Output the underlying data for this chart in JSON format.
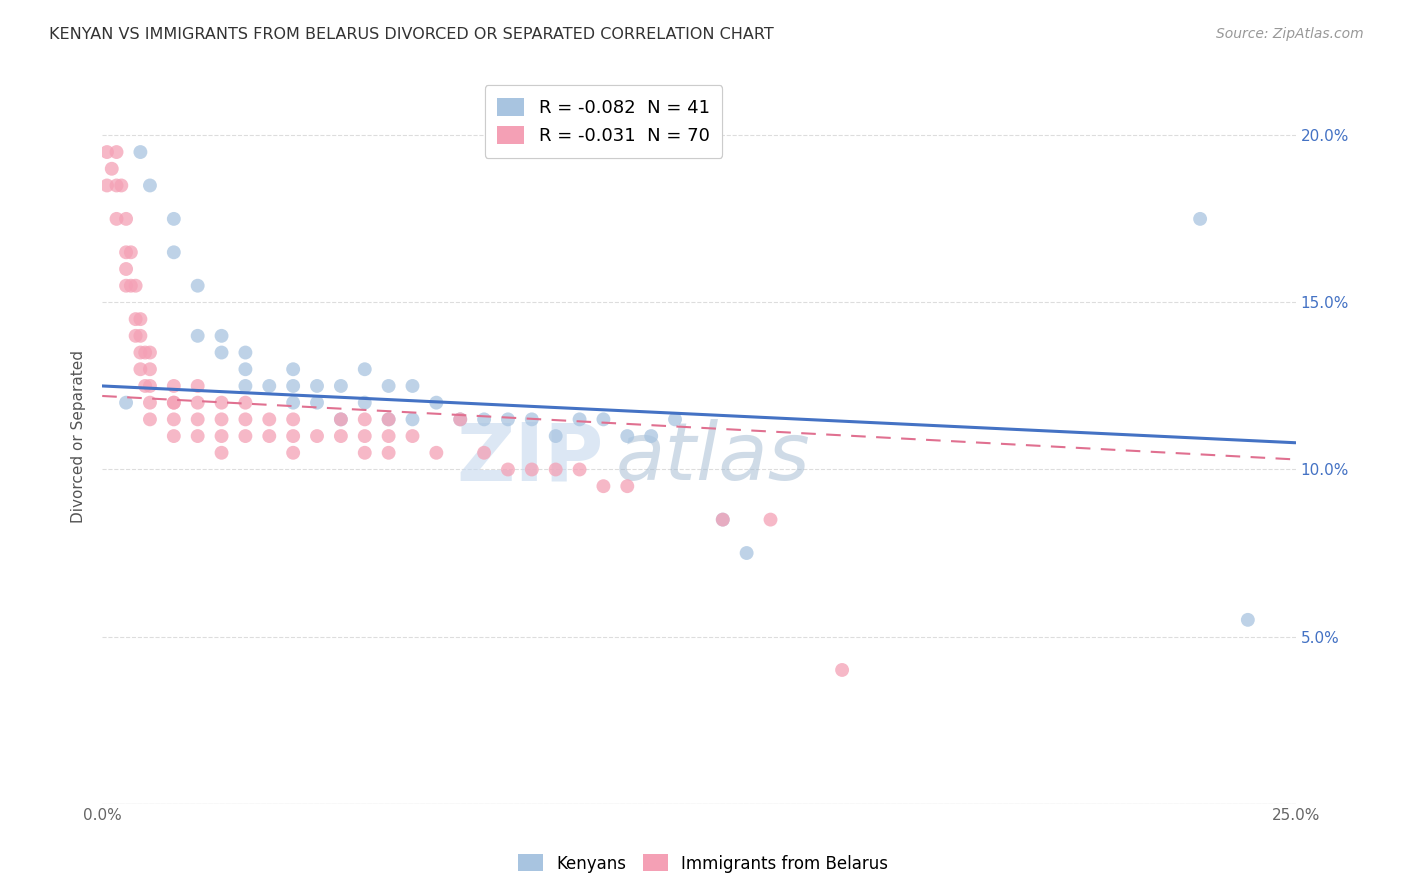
{
  "title": "KENYAN VS IMMIGRANTS FROM BELARUS DIVORCED OR SEPARATED CORRELATION CHART",
  "source": "Source: ZipAtlas.com",
  "ylabel": "Divorced or Separated",
  "x_min": 0.0,
  "x_max": 0.25,
  "y_min": 0.0,
  "y_max": 0.22,
  "x_ticks": [
    0.0,
    0.05,
    0.1,
    0.15,
    0.2,
    0.25
  ],
  "x_tick_labels": [
    "0.0%",
    "",
    "",
    "",
    "",
    "25.0%"
  ],
  "y_ticks": [
    0.0,
    0.05,
    0.1,
    0.15,
    0.2
  ],
  "y_tick_labels": [
    "",
    "5.0%",
    "10.0%",
    "15.0%",
    "20.0%"
  ],
  "legend_entries": [
    {
      "label": "R = -0.082  N = 41",
      "color": "#a8c4e0"
    },
    {
      "label": "R = -0.031  N = 70",
      "color": "#f4a0b5"
    }
  ],
  "legend_labels_bottom": [
    "Kenyans",
    "Immigrants from Belarus"
  ],
  "blue_scatter_x": [
    0.005,
    0.008,
    0.01,
    0.015,
    0.015,
    0.02,
    0.02,
    0.025,
    0.025,
    0.03,
    0.03,
    0.03,
    0.035,
    0.04,
    0.04,
    0.04,
    0.045,
    0.045,
    0.05,
    0.05,
    0.055,
    0.055,
    0.06,
    0.06,
    0.065,
    0.065,
    0.07,
    0.075,
    0.08,
    0.085,
    0.09,
    0.095,
    0.1,
    0.105,
    0.11,
    0.115,
    0.12,
    0.13,
    0.135,
    0.23,
    0.24
  ],
  "blue_scatter_y": [
    0.12,
    0.195,
    0.185,
    0.175,
    0.165,
    0.155,
    0.14,
    0.14,
    0.135,
    0.125,
    0.135,
    0.13,
    0.125,
    0.13,
    0.125,
    0.12,
    0.125,
    0.12,
    0.125,
    0.115,
    0.13,
    0.12,
    0.125,
    0.115,
    0.125,
    0.115,
    0.12,
    0.115,
    0.115,
    0.115,
    0.115,
    0.11,
    0.115,
    0.115,
    0.11,
    0.11,
    0.115,
    0.085,
    0.075,
    0.175,
    0.055
  ],
  "pink_scatter_x": [
    0.001,
    0.001,
    0.002,
    0.003,
    0.003,
    0.003,
    0.004,
    0.005,
    0.005,
    0.005,
    0.005,
    0.006,
    0.006,
    0.007,
    0.007,
    0.007,
    0.008,
    0.008,
    0.008,
    0.008,
    0.009,
    0.009,
    0.01,
    0.01,
    0.01,
    0.01,
    0.01,
    0.015,
    0.015,
    0.015,
    0.015,
    0.015,
    0.02,
    0.02,
    0.02,
    0.02,
    0.025,
    0.025,
    0.025,
    0.025,
    0.03,
    0.03,
    0.03,
    0.035,
    0.035,
    0.04,
    0.04,
    0.04,
    0.045,
    0.05,
    0.05,
    0.055,
    0.055,
    0.055,
    0.06,
    0.06,
    0.06,
    0.065,
    0.07,
    0.075,
    0.08,
    0.085,
    0.09,
    0.095,
    0.1,
    0.105,
    0.11,
    0.13,
    0.14,
    0.155
  ],
  "pink_scatter_y": [
    0.195,
    0.185,
    0.19,
    0.195,
    0.185,
    0.175,
    0.185,
    0.175,
    0.165,
    0.16,
    0.155,
    0.165,
    0.155,
    0.155,
    0.145,
    0.14,
    0.145,
    0.14,
    0.135,
    0.13,
    0.135,
    0.125,
    0.135,
    0.13,
    0.125,
    0.12,
    0.115,
    0.125,
    0.12,
    0.12,
    0.115,
    0.11,
    0.125,
    0.12,
    0.115,
    0.11,
    0.12,
    0.115,
    0.11,
    0.105,
    0.12,
    0.115,
    0.11,
    0.115,
    0.11,
    0.115,
    0.11,
    0.105,
    0.11,
    0.115,
    0.11,
    0.115,
    0.11,
    0.105,
    0.115,
    0.11,
    0.105,
    0.11,
    0.105,
    0.115,
    0.105,
    0.1,
    0.1,
    0.1,
    0.1,
    0.095,
    0.095,
    0.085,
    0.085,
    0.04
  ],
  "blue_line_x": [
    0.0,
    0.25
  ],
  "blue_line_y": [
    0.125,
    0.108
  ],
  "pink_line_x": [
    0.0,
    0.25
  ],
  "pink_line_y": [
    0.122,
    0.103
  ],
  "blue_color": "#a8c4e0",
  "pink_color": "#f4a0b5",
  "blue_line_color": "#4472c4",
  "pink_line_color": "#e07090",
  "watermark_zip": "ZIP",
  "watermark_atlas": "atlas",
  "background_color": "#ffffff",
  "grid_color": "#dddddd"
}
